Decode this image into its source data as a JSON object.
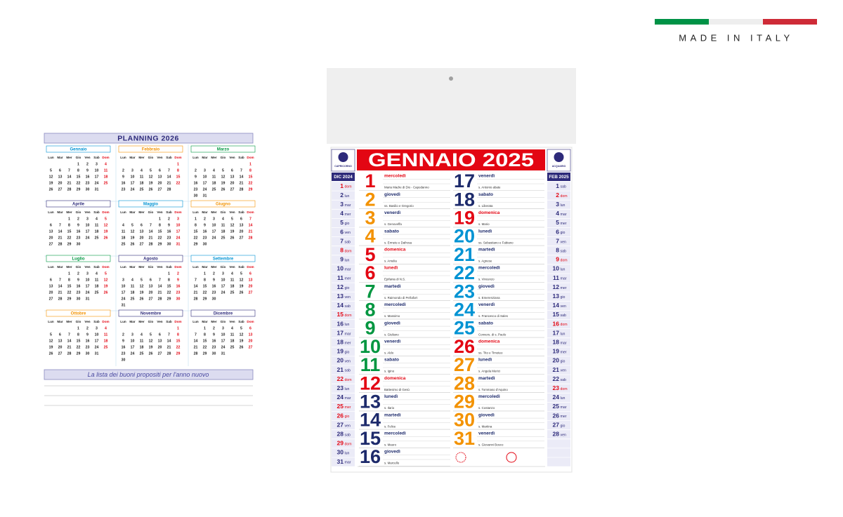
{
  "badge": {
    "text": "MADE IN ITALY",
    "flag": [
      "#009246",
      "#eeeeee",
      "#ce2b37"
    ]
  },
  "planning": {
    "title": "PLANNING 2026",
    "weekdays": [
      "Lun",
      "Mar",
      "Mer",
      "Gio",
      "Ven",
      "Sab",
      "Dom"
    ],
    "months": [
      {
        "name": "Gennaio",
        "color": "#0093d3",
        "weeks": [
          [
            null,
            null,
            null,
            1,
            2,
            3,
            4
          ],
          [
            5,
            6,
            7,
            8,
            9,
            10,
            11
          ],
          [
            12,
            13,
            14,
            15,
            16,
            17,
            18
          ],
          [
            19,
            20,
            21,
            22,
            23,
            24,
            25
          ],
          [
            26,
            27,
            28,
            29,
            30,
            31,
            null
          ]
        ]
      },
      {
        "name": "Febbraio",
        "color": "#f39200",
        "weeks": [
          [
            null,
            null,
            null,
            null,
            null,
            null,
            1
          ],
          [
            2,
            3,
            4,
            5,
            6,
            7,
            8
          ],
          [
            9,
            10,
            11,
            12,
            13,
            14,
            15
          ],
          [
            16,
            17,
            18,
            19,
            20,
            21,
            22
          ],
          [
            23,
            24,
            25,
            26,
            27,
            28,
            null
          ]
        ]
      },
      {
        "name": "Marzo",
        "color": "#009640",
        "weeks": [
          [
            null,
            null,
            null,
            null,
            null,
            null,
            1
          ],
          [
            2,
            3,
            4,
            5,
            6,
            7,
            8
          ],
          [
            9,
            10,
            11,
            12,
            13,
            14,
            15
          ],
          [
            16,
            17,
            18,
            19,
            20,
            21,
            22
          ],
          [
            23,
            24,
            25,
            26,
            27,
            28,
            29
          ],
          [
            30,
            31,
            null,
            null,
            null,
            null,
            null
          ]
        ]
      },
      {
        "name": "Aprile",
        "color": "#2d2a7a",
        "weeks": [
          [
            null,
            null,
            1,
            2,
            3,
            4,
            5
          ],
          [
            6,
            7,
            8,
            9,
            10,
            11,
            12
          ],
          [
            13,
            14,
            15,
            16,
            17,
            18,
            19
          ],
          [
            20,
            21,
            22,
            23,
            24,
            25,
            26
          ],
          [
            27,
            28,
            29,
            30,
            null,
            null,
            null
          ]
        ]
      },
      {
        "name": "Maggio",
        "color": "#0093d3",
        "weeks": [
          [
            null,
            null,
            null,
            null,
            1,
            2,
            3
          ],
          [
            4,
            5,
            6,
            7,
            8,
            9,
            10
          ],
          [
            11,
            12,
            13,
            14,
            15,
            16,
            17
          ],
          [
            18,
            19,
            20,
            21,
            22,
            23,
            24
          ],
          [
            25,
            26,
            27,
            28,
            29,
            30,
            31
          ]
        ]
      },
      {
        "name": "Giugno",
        "color": "#f39200",
        "weeks": [
          [
            1,
            2,
            3,
            4,
            5,
            6,
            7
          ],
          [
            8,
            9,
            10,
            11,
            12,
            13,
            14
          ],
          [
            15,
            16,
            17,
            18,
            19,
            20,
            21
          ],
          [
            22,
            23,
            24,
            25,
            26,
            27,
            28
          ],
          [
            29,
            30,
            null,
            null,
            null,
            null,
            null
          ]
        ]
      },
      {
        "name": "Luglio",
        "color": "#009640",
        "weeks": [
          [
            null,
            null,
            1,
            2,
            3,
            4,
            5
          ],
          [
            6,
            7,
            8,
            9,
            10,
            11,
            12
          ],
          [
            13,
            14,
            15,
            16,
            17,
            18,
            19
          ],
          [
            20,
            21,
            22,
            23,
            24,
            25,
            26
          ],
          [
            27,
            28,
            29,
            30,
            31,
            null,
            null
          ]
        ]
      },
      {
        "name": "Agosto",
        "color": "#2d2a7a",
        "weeks": [
          [
            null,
            null,
            null,
            null,
            null,
            1,
            2
          ],
          [
            3,
            4,
            5,
            6,
            7,
            8,
            9
          ],
          [
            10,
            11,
            12,
            13,
            14,
            15,
            16
          ],
          [
            17,
            18,
            19,
            20,
            21,
            22,
            23
          ],
          [
            24,
            25,
            26,
            27,
            28,
            29,
            30
          ],
          [
            31,
            null,
            null,
            null,
            null,
            null,
            null
          ]
        ]
      },
      {
        "name": "Settembre",
        "color": "#0093d3",
        "weeks": [
          [
            null,
            1,
            2,
            3,
            4,
            5,
            6
          ],
          [
            7,
            8,
            9,
            10,
            11,
            12,
            13
          ],
          [
            14,
            15,
            16,
            17,
            18,
            19,
            20
          ],
          [
            21,
            22,
            23,
            24,
            25,
            26,
            27
          ],
          [
            28,
            29,
            30,
            null,
            null,
            null,
            null
          ]
        ]
      },
      {
        "name": "Ottobre",
        "color": "#f39200",
        "weeks": [
          [
            null,
            null,
            null,
            1,
            2,
            3,
            4
          ],
          [
            5,
            6,
            7,
            8,
            9,
            10,
            11
          ],
          [
            12,
            13,
            14,
            15,
            16,
            17,
            18
          ],
          [
            19,
            20,
            21,
            22,
            23,
            24,
            25
          ],
          [
            26,
            27,
            28,
            29,
            30,
            31,
            null
          ]
        ]
      },
      {
        "name": "Novembre",
        "color": "#2d2a7a",
        "weeks": [
          [
            null,
            null,
            null,
            null,
            null,
            null,
            1
          ],
          [
            2,
            3,
            4,
            5,
            6,
            7,
            8
          ],
          [
            9,
            10,
            11,
            12,
            13,
            14,
            15
          ],
          [
            16,
            17,
            18,
            19,
            20,
            21,
            22
          ],
          [
            23,
            24,
            25,
            26,
            27,
            28,
            29
          ],
          [
            30,
            null,
            null,
            null,
            null,
            null,
            null
          ]
        ]
      },
      {
        "name": "Dicembre",
        "color": "#2d2a7a",
        "weeks": [
          [
            null,
            1,
            2,
            3,
            4,
            5,
            6
          ],
          [
            7,
            8,
            9,
            10,
            11,
            12,
            13
          ],
          [
            14,
            15,
            16,
            17,
            18,
            19,
            20
          ],
          [
            21,
            22,
            23,
            24,
            25,
            26,
            27
          ],
          [
            28,
            29,
            30,
            31,
            null,
            null,
            null
          ]
        ]
      }
    ],
    "footer": "La lista dei buoni propositi per l'anno nuovo"
  },
  "calendar": {
    "title": "GENNAIO 2025",
    "signs": [
      "CAPRICORNO",
      "ACQUARIO"
    ],
    "prev": {
      "label": "DIC 2024",
      "days": [
        1,
        2,
        3,
        4,
        5,
        6,
        7,
        8,
        9,
        10,
        11,
        12,
        13,
        14,
        15,
        16,
        17,
        18,
        19,
        20,
        21,
        22,
        23,
        24,
        25,
        26,
        27,
        28,
        29,
        30,
        31
      ],
      "weekdays": [
        "dom",
        "lun",
        "mar",
        "mer",
        "gio",
        "ven",
        "sab",
        "dom",
        "lun",
        "mar",
        "mer",
        "gio",
        "ven",
        "sab",
        "dom",
        "lun",
        "mar",
        "mer",
        "gio",
        "ven",
        "sab",
        "dom",
        "lun",
        "mar",
        "mer",
        "gio",
        "ven",
        "sab",
        "dom",
        "lun",
        "mar"
      ],
      "red_days": [
        1,
        8,
        15,
        22,
        25,
        26,
        29
      ]
    },
    "next": {
      "label": "FEB 2025",
      "days": [
        1,
        2,
        3,
        4,
        5,
        6,
        7,
        8,
        9,
        10,
        11,
        12,
        13,
        14,
        15,
        16,
        17,
        18,
        19,
        20,
        21,
        22,
        23,
        24,
        25,
        26,
        27,
        28
      ],
      "weekdays": [
        "sab",
        "dom",
        "lun",
        "mar",
        "mer",
        "gio",
        "ven",
        "sab",
        "dom",
        "lun",
        "mar",
        "mer",
        "gio",
        "ven",
        "sab",
        "dom",
        "lun",
        "mar",
        "mer",
        "gio",
        "ven",
        "sab",
        "dom",
        "lun",
        "mar",
        "mer",
        "gio",
        "ven"
      ],
      "red_days": [
        2,
        9,
        16,
        23
      ]
    },
    "days": [
      {
        "n": 1,
        "weekday": "mercoledì",
        "saint": "Maria Madre di Dio - Capodanno",
        "color": "#e30613"
      },
      {
        "n": 2,
        "weekday": "giovedì",
        "saint": "ss. Basilio e Gregorio",
        "color": "#f39200"
      },
      {
        "n": 3,
        "weekday": "venerdì",
        "saint": "s. Genoveffa",
        "color": "#f39200"
      },
      {
        "n": 4,
        "weekday": "sabato",
        "saint": "s. Ermete e Dafrosa",
        "color": "#f39200"
      },
      {
        "n": 5,
        "weekday": "domenica",
        "saint": "s. Amelia",
        "color": "#e30613"
      },
      {
        "n": 6,
        "weekday": "lunedì",
        "saint": "Epifania di N.S.",
        "color": "#e30613"
      },
      {
        "n": 7,
        "weekday": "martedì",
        "saint": "s. Raimondo di Peñafort",
        "color": "#009640"
      },
      {
        "n": 8,
        "weekday": "mercoledì",
        "saint": "s. Massimo",
        "color": "#009640"
      },
      {
        "n": 9,
        "weekday": "giovedì",
        "saint": "s. Giuliano",
        "color": "#009640"
      },
      {
        "n": 10,
        "weekday": "venerdì",
        "saint": "s. Aldo",
        "color": "#009640"
      },
      {
        "n": 11,
        "weekday": "sabato",
        "saint": "s. Igino",
        "color": "#009640"
      },
      {
        "n": 12,
        "weekday": "domenica",
        "saint": "Battesimo di Gesù",
        "color": "#e30613"
      },
      {
        "n": 13,
        "weekday": "lunedì",
        "saint": "s. Ilario",
        "color": "#1d2a6b"
      },
      {
        "n": 14,
        "weekday": "martedì",
        "saint": "s. Felice",
        "color": "#1d2a6b"
      },
      {
        "n": 15,
        "weekday": "mercoledì",
        "saint": "s. Mauro",
        "color": "#1d2a6b"
      },
      {
        "n": 16,
        "weekday": "giovedì",
        "saint": "s. Marcello",
        "color": "#1d2a6b"
      },
      {
        "n": 17,
        "weekday": "venerdì",
        "saint": "s. Antonio abate",
        "color": "#1d2a6b"
      },
      {
        "n": 18,
        "weekday": "sabato",
        "saint": "s. Liberata",
        "color": "#1d2a6b"
      },
      {
        "n": 19,
        "weekday": "domenica",
        "saint": "s. Mario",
        "color": "#e30613"
      },
      {
        "n": 20,
        "weekday": "lunedì",
        "saint": "ss. Sebastiano e Fabiano",
        "color": "#0093d3"
      },
      {
        "n": 21,
        "weekday": "martedì",
        "saint": "s. Agnese",
        "color": "#0093d3"
      },
      {
        "n": 22,
        "weekday": "mercoledì",
        "saint": "s. Vincenzo",
        "color": "#0093d3"
      },
      {
        "n": 23,
        "weekday": "giovedì",
        "saint": "s. Emerenziana",
        "color": "#0093d3"
      },
      {
        "n": 24,
        "weekday": "venerdì",
        "saint": "s. Francesco di Sales",
        "color": "#0093d3"
      },
      {
        "n": 25,
        "weekday": "sabato",
        "saint": "Convers. di s. Paolo",
        "color": "#0093d3"
      },
      {
        "n": 26,
        "weekday": "domenica",
        "saint": "ss. Tito e Timoteo",
        "color": "#e30613"
      },
      {
        "n": 27,
        "weekday": "lunedì",
        "saint": "s. Angela Merici",
        "color": "#f39200"
      },
      {
        "n": 28,
        "weekday": "martedì",
        "saint": "s. Tommaso d'Aquino",
        "color": "#f39200"
      },
      {
        "n": 29,
        "weekday": "mercoledì",
        "saint": "s. Costanzo",
        "color": "#f39200"
      },
      {
        "n": 30,
        "weekday": "giovedì",
        "saint": "s. Martina",
        "color": "#f39200"
      },
      {
        "n": 31,
        "weekday": "venerdì",
        "saint": "s. Giovanni Bosco",
        "color": "#f39200"
      }
    ]
  }
}
